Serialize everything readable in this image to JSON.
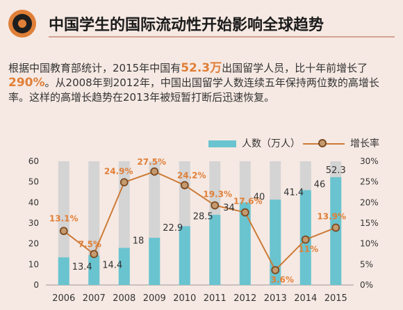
{
  "header": {
    "title": "中国学生的国际流动性开始影响全球趋势"
  },
  "description": {
    "seg1": "根据中国教育部统计，2015年中国有",
    "hl1": "52.3万",
    "seg2": "出国留学人员，比十年前增长了",
    "hl2": "290%",
    "seg3": "。从2008年到2012年，中国出国留学人数连续五年保持两位数的高增长率。这样的高增长趋势在2013年被短暂打断后迅速恢复。"
  },
  "legend": {
    "bar_label": "人数（万人）",
    "line_label": "增长率"
  },
  "colors": {
    "bar": "#69c4d0",
    "bar_bg": "#d4d4d4",
    "line": "#cc7a36",
    "marker_fill": "#c69a6f",
    "marker_stroke": "#7a4a22",
    "highlight": "#e07f38"
  },
  "chart_data": {
    "type": "bar+line",
    "categories": [
      "2006",
      "2007",
      "2008",
      "2009",
      "2010",
      "2011",
      "2012",
      "2013",
      "2014",
      "2015"
    ],
    "series": [
      {
        "name": "人数（万人）",
        "axis": "left",
        "values": [
          13.4,
          14.4,
          18,
          22.9,
          28.5,
          34,
          40,
          41.4,
          46,
          52.3
        ],
        "labels": [
          "13.4",
          "14.4",
          "18",
          "22.9",
          "28.5",
          "34",
          "40",
          "41.4",
          "46",
          "52.3"
        ]
      },
      {
        "name": "增长率",
        "axis": "right",
        "values": [
          13.1,
          7.5,
          24.9,
          27.5,
          24.2,
          19.3,
          17.6,
          3.6,
          11,
          13.9
        ],
        "labels": [
          "13.1%",
          "7.5%",
          "24.9%",
          "27.5%",
          "24.2%",
          "19.3%",
          "17.6%",
          "3.6%",
          "11%",
          "13.9%"
        ]
      }
    ],
    "left_axis": {
      "ylim": [
        0,
        60
      ],
      "ticks": [
        "0",
        "10",
        "20",
        "30",
        "40",
        "50",
        "60"
      ]
    },
    "right_axis": {
      "ylim": [
        0,
        30
      ],
      "ticks": [
        "0%",
        "5%",
        "10%",
        "15%",
        "20%",
        "25%",
        "30%"
      ]
    },
    "background_bar_value": 60,
    "legend_position": "top-right"
  }
}
